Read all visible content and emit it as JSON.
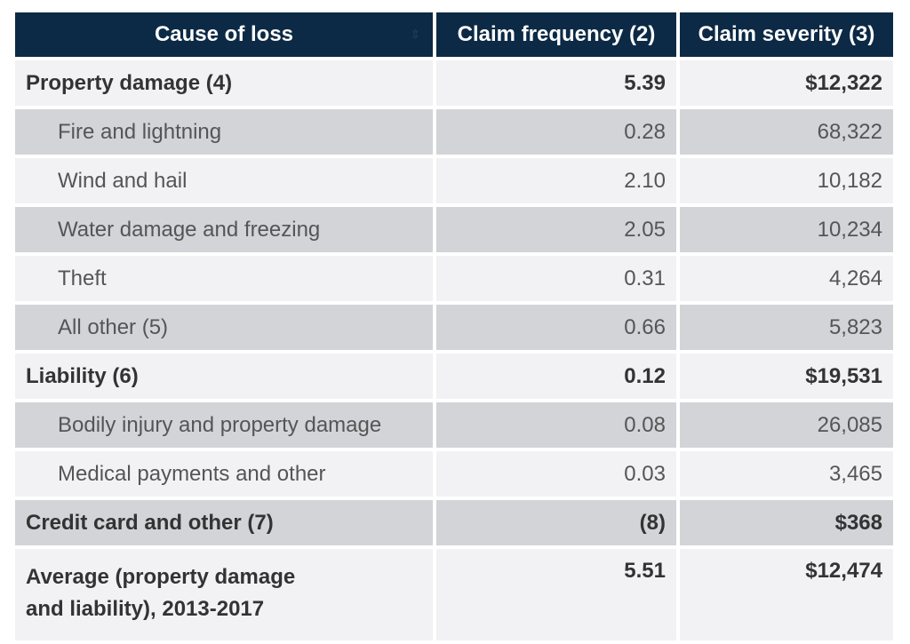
{
  "headers": {
    "cause": "Cause of loss",
    "frequency": "Claim frequency (2)",
    "severity": "Claim severity (3)"
  },
  "rows": [
    {
      "cause": "Property damage (4)",
      "frequency": "5.39",
      "severity": "$12,322"
    },
    {
      "cause": "Fire and lightning",
      "frequency": "0.28",
      "severity": "68,322"
    },
    {
      "cause": "Wind and hail",
      "frequency": "2.10",
      "severity": "10,182"
    },
    {
      "cause": "Water damage and freezing",
      "frequency": "2.05",
      "severity": "10,234"
    },
    {
      "cause": "Theft",
      "frequency": "0.31",
      "severity": "4,264"
    },
    {
      "cause": "All other (5)",
      "frequency": "0.66",
      "severity": "5,823"
    },
    {
      "cause": "Liability (6)",
      "frequency": "0.12",
      "severity": "$19,531"
    },
    {
      "cause": "Bodily injury and property damage",
      "frequency": "0.08",
      "severity": "26,085"
    },
    {
      "cause": "Medical payments and other",
      "frequency": "0.03",
      "severity": "3,465"
    },
    {
      "cause": "Credit card and other (7)",
      "frequency": "(8)",
      "severity": "$368"
    },
    {
      "cause_line1": "Average (property damage",
      "cause_line2": "and liability), 2013-2017",
      "frequency": "5.51",
      "severity": "$12,474"
    }
  ],
  "colors": {
    "header_bg": "#0c2a45",
    "row_light": "#f2f2f4",
    "row_dark": "#d3d4d8"
  }
}
